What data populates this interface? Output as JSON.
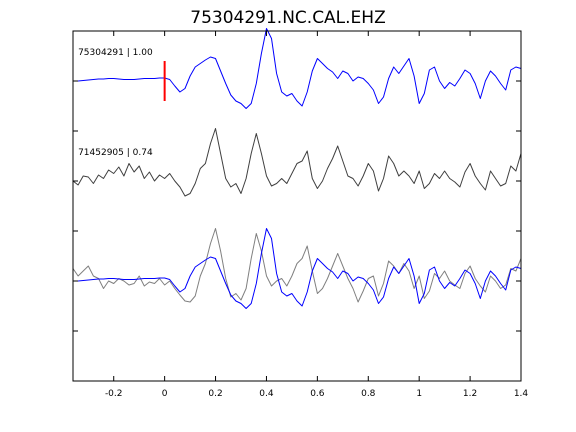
{
  "chart_data": {
    "type": "line",
    "title": "75304291.NC.CAL.EHZ",
    "xlabel": "",
    "ylabel": "",
    "xlim": [
      -0.36,
      1.4
    ],
    "ylim": [
      0,
      7
    ],
    "xticks": [
      -0.2,
      0,
      0.2,
      0.4,
      0.6,
      0.8,
      1,
      1.2,
      1.4
    ],
    "xtick_labels": [
      "-0.2",
      "0",
      "0.2",
      "0.4",
      "0.6",
      "0.8",
      "1",
      "1.2",
      "1.4"
    ],
    "yticks": [
      1,
      2,
      3,
      4,
      5,
      6
    ],
    "grid": false,
    "pick_marker": {
      "x": 0,
      "y_range": [
        5.6,
        6.4
      ],
      "color": "#ff0000"
    },
    "series_colors": {
      "master": "#0000ff",
      "similar": "#404040",
      "similar_overlay": "#808080"
    },
    "annotations": [
      {
        "label": "75304291 | 1.00",
        "x": -0.34,
        "y": 6.52
      },
      {
        "label": "71452905 | 0.74",
        "x": -0.34,
        "y": 4.52
      }
    ],
    "series": [
      {
        "color": "#0000ff",
        "baseline": 6,
        "x": [
          -0.36,
          -0.34,
          -0.32,
          -0.3,
          -0.28,
          -0.26,
          -0.24,
          -0.22,
          -0.2,
          -0.18,
          -0.16,
          -0.14,
          -0.12,
          -0.1,
          -0.08,
          -0.06,
          -0.04,
          -0.02,
          0,
          0.02,
          0.04,
          0.06,
          0.08,
          0.1,
          0.12,
          0.14,
          0.16,
          0.18,
          0.2,
          0.22,
          0.24,
          0.26,
          0.28,
          0.3,
          0.32,
          0.34,
          0.36,
          0.38,
          0.4,
          0.42,
          0.44,
          0.46,
          0.48,
          0.5,
          0.52,
          0.54,
          0.56,
          0.58,
          0.6,
          0.62,
          0.64,
          0.66,
          0.68,
          0.7,
          0.72,
          0.74,
          0.76,
          0.78,
          0.8,
          0.82,
          0.84,
          0.86,
          0.88,
          0.9,
          0.92,
          0.94,
          0.96,
          0.98,
          1,
          1.02,
          1.04,
          1.06,
          1.08,
          1.1,
          1.12,
          1.14,
          1.16,
          1.18,
          1.2,
          1.22,
          1.24,
          1.26,
          1.28,
          1.3,
          1.32,
          1.34,
          1.36,
          1.38,
          1.4
        ],
        "y": [
          6.0,
          6.0,
          6.01,
          6.02,
          6.03,
          6.04,
          6.04,
          6.05,
          6.05,
          6.04,
          6.03,
          6.03,
          6.03,
          6.04,
          6.05,
          6.05,
          6.05,
          6.06,
          6.06,
          6.03,
          5.9,
          5.78,
          5.85,
          6.1,
          6.28,
          6.35,
          6.42,
          6.48,
          6.45,
          6.2,
          5.95,
          5.72,
          5.6,
          5.55,
          5.45,
          5.55,
          5.95,
          6.55,
          7.05,
          6.85,
          6.15,
          5.78,
          5.7,
          5.75,
          5.6,
          5.5,
          5.78,
          6.2,
          6.45,
          6.35,
          6.25,
          6.18,
          6.05,
          6.2,
          6.15,
          6.0,
          6.08,
          6.05,
          5.95,
          5.82,
          5.55,
          5.68,
          6.05,
          6.28,
          6.15,
          6.3,
          6.45,
          6.1,
          5.55,
          5.75,
          6.22,
          6.28,
          6.0,
          5.85,
          5.97,
          5.9,
          6.05,
          6.22,
          6.15,
          5.95,
          5.65,
          6.0,
          6.2,
          6.1,
          5.95,
          5.82,
          6.22,
          6.28,
          6.25
        ]
      },
      {
        "color": "#404040",
        "baseline": 4,
        "x": [
          -0.36,
          -0.34,
          -0.32,
          -0.3,
          -0.28,
          -0.26,
          -0.24,
          -0.22,
          -0.2,
          -0.18,
          -0.16,
          -0.14,
          -0.12,
          -0.1,
          -0.08,
          -0.06,
          -0.04,
          -0.02,
          0,
          0.02,
          0.04,
          0.06,
          0.08,
          0.1,
          0.12,
          0.14,
          0.16,
          0.18,
          0.2,
          0.22,
          0.24,
          0.26,
          0.28,
          0.3,
          0.32,
          0.34,
          0.36,
          0.38,
          0.4,
          0.42,
          0.44,
          0.46,
          0.48,
          0.5,
          0.52,
          0.54,
          0.56,
          0.58,
          0.6,
          0.62,
          0.64,
          0.66,
          0.68,
          0.7,
          0.72,
          0.74,
          0.76,
          0.78,
          0.8,
          0.82,
          0.84,
          0.86,
          0.88,
          0.9,
          0.92,
          0.94,
          0.96,
          0.98,
          1,
          1.02,
          1.04,
          1.06,
          1.08,
          1.1,
          1.12,
          1.14,
          1.16,
          1.18,
          1.2,
          1.22,
          1.24,
          1.26,
          1.28,
          1.3,
          1.32,
          1.34,
          1.36,
          1.38,
          1.4
        ],
        "y": [
          4.0,
          3.92,
          4.1,
          4.08,
          3.95,
          4.12,
          4.05,
          4.22,
          4.15,
          4.28,
          4.1,
          4.35,
          4.18,
          4.3,
          4.05,
          4.18,
          4.0,
          4.12,
          4.05,
          4.15,
          4.0,
          3.88,
          3.7,
          3.75,
          3.95,
          4.25,
          4.35,
          4.75,
          5.05,
          4.55,
          4.05,
          3.88,
          3.95,
          3.75,
          4.05,
          4.55,
          4.95,
          4.55,
          4.1,
          3.9,
          3.95,
          4.05,
          3.95,
          4.15,
          4.35,
          4.4,
          4.6,
          4.05,
          3.85,
          4.0,
          4.25,
          4.45,
          4.7,
          4.4,
          4.1,
          4.05,
          3.9,
          4.1,
          4.35,
          4.2,
          3.8,
          4.05,
          4.5,
          4.35,
          4.1,
          4.2,
          4.1,
          3.95,
          4.2,
          3.85,
          3.95,
          4.15,
          4.05,
          4.2,
          4.05,
          3.98,
          3.88,
          4.18,
          4.35,
          4.1,
          3.95,
          3.82,
          4.2,
          4.05,
          3.9,
          3.95,
          4.3,
          4.2,
          4.55
        ]
      },
      {
        "color": "#808080",
        "baseline": 2,
        "x": [
          -0.36,
          -0.34,
          -0.32,
          -0.3,
          -0.28,
          -0.26,
          -0.24,
          -0.22,
          -0.2,
          -0.18,
          -0.16,
          -0.14,
          -0.12,
          -0.1,
          -0.08,
          -0.06,
          -0.04,
          -0.02,
          0,
          0.02,
          0.04,
          0.06,
          0.08,
          0.1,
          0.12,
          0.14,
          0.16,
          0.18,
          0.2,
          0.22,
          0.24,
          0.26,
          0.28,
          0.3,
          0.32,
          0.34,
          0.36,
          0.38,
          0.4,
          0.42,
          0.44,
          0.46,
          0.48,
          0.5,
          0.52,
          0.54,
          0.56,
          0.58,
          0.6,
          0.62,
          0.64,
          0.66,
          0.68,
          0.7,
          0.72,
          0.74,
          0.76,
          0.78,
          0.8,
          0.82,
          0.84,
          0.86,
          0.88,
          0.9,
          0.92,
          0.94,
          0.96,
          0.98,
          1,
          1.02,
          1.04,
          1.06,
          1.08,
          1.1,
          1.12,
          1.14,
          1.16,
          1.18,
          1.2,
          1.22,
          1.24,
          1.26,
          1.28,
          1.3,
          1.32,
          1.34,
          1.36,
          1.38,
          1.4
        ],
        "y": [
          2.25,
          2.1,
          2.2,
          2.3,
          2.1,
          2.05,
          1.85,
          2.0,
          1.95,
          2.05,
          2.0,
          1.92,
          1.95,
          2.1,
          1.9,
          1.98,
          1.95,
          2.05,
          1.92,
          2.0,
          1.85,
          1.72,
          1.6,
          1.58,
          1.7,
          2.1,
          2.35,
          2.75,
          3.05,
          2.6,
          2.05,
          1.68,
          1.75,
          1.62,
          1.85,
          2.45,
          2.95,
          2.6,
          2.1,
          1.9,
          2.0,
          2.05,
          1.9,
          2.1,
          2.35,
          2.45,
          2.7,
          2.2,
          1.75,
          1.85,
          2.05,
          2.3,
          2.55,
          2.3,
          2.05,
          1.85,
          1.58,
          1.8,
          2.05,
          2.1,
          1.7,
          1.95,
          2.4,
          2.3,
          2.15,
          2.35,
          2.2,
          1.85,
          2.1,
          1.65,
          1.8,
          2.15,
          2.05,
          2.2,
          2.0,
          1.92,
          1.85,
          2.15,
          2.3,
          2.05,
          1.9,
          1.78,
          2.1,
          2.0,
          1.85,
          1.92,
          2.25,
          2.2,
          2.45
        ]
      },
      {
        "color": "#0000ff",
        "baseline": 2,
        "x": [
          -0.36,
          -0.34,
          -0.32,
          -0.3,
          -0.28,
          -0.26,
          -0.24,
          -0.22,
          -0.2,
          -0.18,
          -0.16,
          -0.14,
          -0.12,
          -0.1,
          -0.08,
          -0.06,
          -0.04,
          -0.02,
          0,
          0.02,
          0.04,
          0.06,
          0.08,
          0.1,
          0.12,
          0.14,
          0.16,
          0.18,
          0.2,
          0.22,
          0.24,
          0.26,
          0.28,
          0.3,
          0.32,
          0.34,
          0.36,
          0.38,
          0.4,
          0.42,
          0.44,
          0.46,
          0.48,
          0.5,
          0.52,
          0.54,
          0.56,
          0.58,
          0.6,
          0.62,
          0.64,
          0.66,
          0.68,
          0.7,
          0.72,
          0.74,
          0.76,
          0.78,
          0.8,
          0.82,
          0.84,
          0.86,
          0.88,
          0.9,
          0.92,
          0.94,
          0.96,
          0.98,
          1,
          1.02,
          1.04,
          1.06,
          1.08,
          1.1,
          1.12,
          1.14,
          1.16,
          1.18,
          1.2,
          1.22,
          1.24,
          1.26,
          1.28,
          1.3,
          1.32,
          1.34,
          1.36,
          1.38,
          1.4
        ],
        "y": [
          2.0,
          2.0,
          2.01,
          2.02,
          2.03,
          2.04,
          2.04,
          2.05,
          2.05,
          2.04,
          2.03,
          2.03,
          2.03,
          2.04,
          2.05,
          2.05,
          2.05,
          2.06,
          2.06,
          2.03,
          1.9,
          1.78,
          1.85,
          2.1,
          2.28,
          2.35,
          2.42,
          2.48,
          2.45,
          2.2,
          1.95,
          1.72,
          1.6,
          1.55,
          1.45,
          1.55,
          1.95,
          2.55,
          3.05,
          2.85,
          2.15,
          1.78,
          1.7,
          1.75,
          1.6,
          1.5,
          1.78,
          2.2,
          2.45,
          2.35,
          2.25,
          2.18,
          2.05,
          2.2,
          2.15,
          2.0,
          2.08,
          2.05,
          1.95,
          1.82,
          1.55,
          1.68,
          2.05,
          2.28,
          2.15,
          2.3,
          2.45,
          2.1,
          1.55,
          1.75,
          2.22,
          2.28,
          2.0,
          1.85,
          1.97,
          1.9,
          2.05,
          2.22,
          2.15,
          1.95,
          1.65,
          2.0,
          2.2,
          2.1,
          1.95,
          1.82,
          2.22,
          2.28,
          2.25
        ]
      }
    ]
  }
}
